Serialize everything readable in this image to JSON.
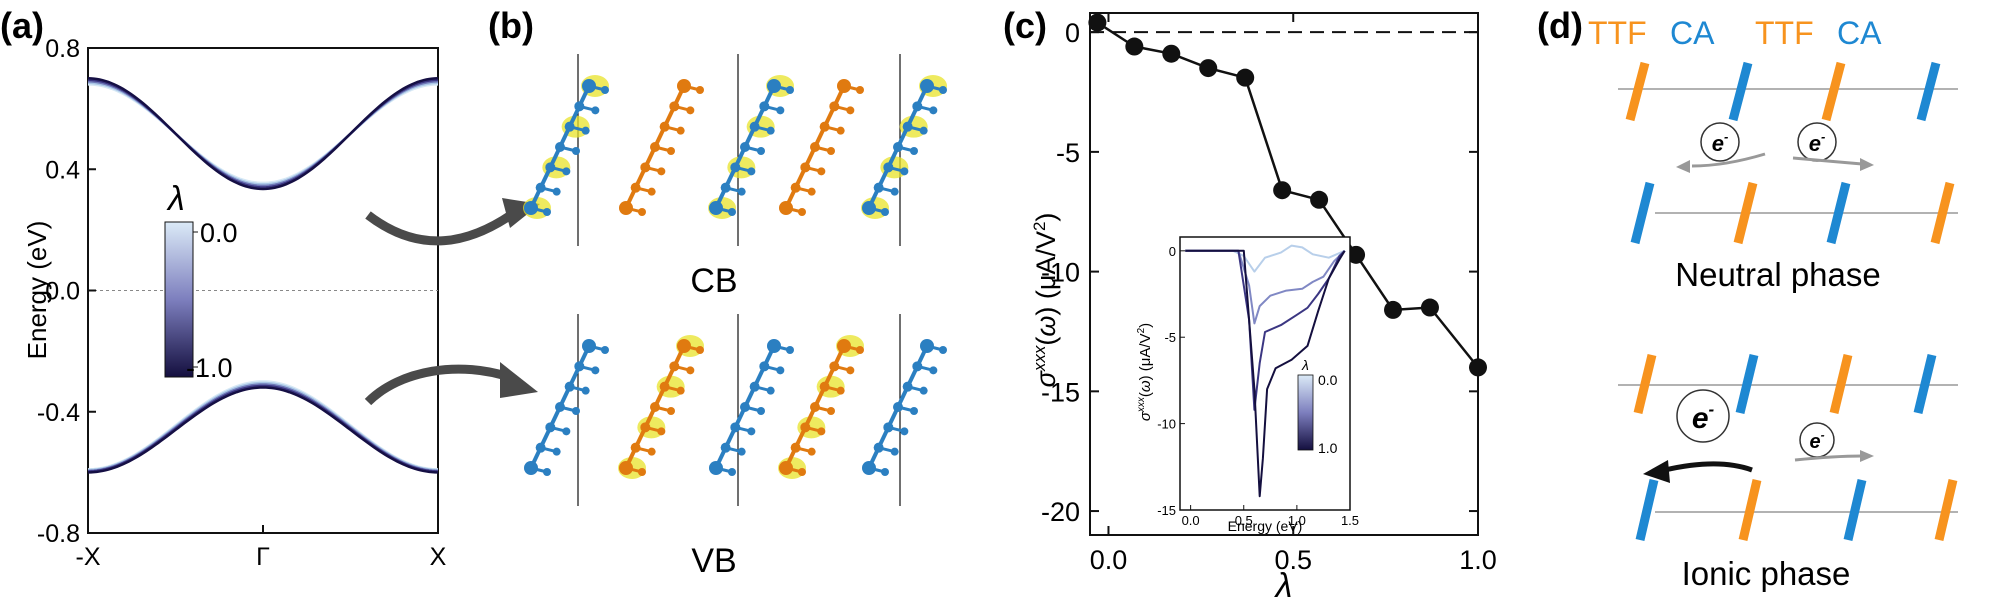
{
  "panel_labels": [
    "(a)",
    "(b)",
    "(c)",
    "(d)"
  ],
  "chart_data": [
    {
      "panel": "(a)",
      "type": "line",
      "xlabel": "",
      "ylabel": "Energy (eV)",
      "x_tick_labels": [
        "-X",
        "Γ",
        "X"
      ],
      "ylim": [
        -0.8,
        0.8
      ],
      "y_ticks": [
        0.8,
        0.4,
        0.0,
        -0.4,
        -0.8
      ],
      "y_tick_labels": [
        "0.8",
        "0.4",
        "0.0",
        "-0.4",
        "-0.8"
      ],
      "zero_line": "dashed",
      "colorbar": {
        "symbol": "λ",
        "min_label": "0.0",
        "max_label": "-1.0",
        "color_low": "#dbeaf7",
        "color_high": "#140f3f"
      },
      "series": [
        {
          "lambda": 0.0,
          "cb_edge": 0.68,
          "cb_gamma": 0.355,
          "vb_edge": -0.59,
          "vb_gamma": -0.3,
          "color": "#d6e8f5"
        },
        {
          "lambda": -0.25,
          "cb_edge": 0.685,
          "cb_gamma": 0.35,
          "vb_edge": -0.592,
          "vb_gamma": -0.305,
          "color": "#a9c6e6"
        },
        {
          "lambda": -0.5,
          "cb_edge": 0.69,
          "cb_gamma": 0.345,
          "vb_edge": -0.595,
          "vb_gamma": -0.31,
          "color": "#6f78b7"
        },
        {
          "lambda": -0.75,
          "cb_edge": 0.695,
          "cb_gamma": 0.34,
          "vb_edge": -0.597,
          "vb_gamma": -0.315,
          "color": "#3b3682"
        },
        {
          "lambda": -1.0,
          "cb_edge": 0.7,
          "cb_gamma": 0.335,
          "vb_edge": -0.6,
          "vb_gamma": -0.32,
          "color": "#150f44"
        }
      ]
    },
    {
      "panel": "(c)",
      "type": "line",
      "xlabel": "λ",
      "ylabel": "σxxx(ω) (μA/V2)",
      "xlim": [
        -0.05,
        1.0
      ],
      "ylim": [
        -21,
        0.8
      ],
      "x_ticks": [
        0.0,
        0.5,
        1.0
      ],
      "x_tick_labels": [
        "0.0",
        "0.5",
        "1.0"
      ],
      "y_ticks": [
        0,
        -5,
        -10,
        -15,
        -20
      ],
      "y_tick_labels": [
        "0",
        "-5",
        "-10",
        "-15",
        "-20"
      ],
      "zero_line": "dashed",
      "x": [
        -0.03,
        0.07,
        0.17,
        0.27,
        0.37,
        0.47,
        0.57,
        0.67,
        0.77,
        0.87,
        1.0
      ],
      "y": [
        0.4,
        -0.6,
        -0.9,
        -1.5,
        -1.9,
        -6.6,
        -7.0,
        -9.3,
        -11.6,
        -11.5,
        -14.0
      ],
      "inset": {
        "type": "line",
        "xlabel": "Energy (eV)",
        "ylabel": "σxxx(ω) (μA/V2)",
        "xlim": [
          -0.1,
          1.5
        ],
        "ylim": [
          -15,
          0.8
        ],
        "x_ticks": [
          0.0,
          0.5,
          1.0,
          1.5
        ],
        "x_tick_labels": [
          "0.0",
          "0.5",
          "1.0",
          "1.5"
        ],
        "y_ticks": [
          0,
          -5,
          -10,
          -15
        ],
        "y_tick_labels": [
          "0",
          "-5",
          "-10",
          "-15"
        ],
        "colorbar": {
          "symbol": "λ",
          "min_label": "0.0",
          "max_label": "1.0",
          "color_low": "#dbeaf7",
          "color_high": "#140f3f"
        },
        "series": [
          {
            "lambda": 0.0,
            "color": "#b8cfea",
            "x": [
              -0.05,
              0.4,
              0.5,
              0.6,
              0.7,
              0.85,
              0.95,
              1.05,
              1.15,
              1.3,
              1.45
            ],
            "y": [
              0,
              0,
              -0.3,
              -1.2,
              -0.4,
              -0.1,
              0.3,
              0.2,
              -0.2,
              -0.4,
              0
            ]
          },
          {
            "lambda": 0.33,
            "color": "#8088c4",
            "x": [
              -0.05,
              0.45,
              0.55,
              0.6,
              0.65,
              0.75,
              0.9,
              1.05,
              1.15,
              1.25,
              1.35,
              1.45
            ],
            "y": [
              0,
              0,
              -2,
              -4.2,
              -3.2,
              -2.6,
              -2.3,
              -2.2,
              -1.8,
              -1.5,
              -0.6,
              0
            ]
          },
          {
            "lambda": 0.66,
            "color": "#3b3682",
            "x": [
              -0.05,
              0.45,
              0.55,
              0.6,
              0.65,
              0.7,
              0.85,
              1.0,
              1.1,
              1.2,
              1.3,
              1.4,
              1.45
            ],
            "y": [
              0,
              0,
              -4,
              -9.2,
              -6.5,
              -4.7,
              -4.3,
              -3.7,
              -3.3,
              -2.5,
              -1.6,
              -0.3,
              0
            ]
          },
          {
            "lambda": 1.0,
            "color": "#140f3f",
            "x": [
              -0.05,
              0.5,
              0.6,
              0.65,
              0.68,
              0.72,
              0.8,
              0.95,
              1.1,
              1.2,
              1.3,
              1.4,
              1.45
            ],
            "y": [
              0,
              0,
              -8,
              -14.2,
              -12,
              -8,
              -6.8,
              -6.3,
              -5.5,
              -3.5,
              -1.6,
              -0.5,
              0
            ]
          }
        ]
      }
    }
  ],
  "panel_b": {
    "cb_label": "CB",
    "vb_label": "VB"
  },
  "panel_d": {
    "header": [
      "TTF",
      "CA",
      "TTF",
      "CA"
    ],
    "electron": "e",
    "electron_sup": "-",
    "neutral_label": "Neutral phase",
    "ionic_label": "Ionic phase",
    "colors": {
      "ttf": "#f7931e",
      "ca": "#1e88d2"
    }
  }
}
